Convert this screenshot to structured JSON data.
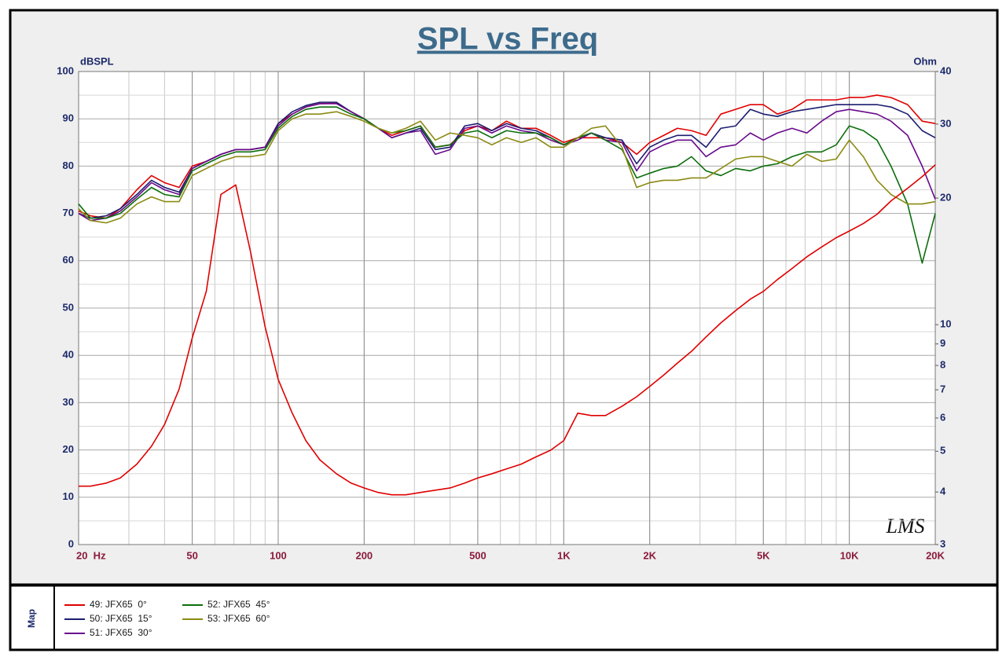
{
  "chart_data": {
    "type": "line",
    "title": "SPL vs Freq",
    "ylabel": "dBSPL",
    "y2label": "Ohm",
    "watermark": "LMS",
    "legend_title": "Map",
    "xscale": "log",
    "y2scale": "log",
    "grid": true,
    "xlim": [
      20,
      20000
    ],
    "xticks": [
      {
        "value": 20,
        "label": "20  Hz"
      },
      50,
      100,
      200,
      500,
      {
        "value": 1000,
        "label": "1K"
      },
      {
        "value": 2000,
        "label": "2K"
      },
      {
        "value": 5000,
        "label": "5K"
      },
      {
        "value": 10000,
        "label": "10K"
      },
      {
        "value": 20000,
        "label": "20K"
      }
    ],
    "ylim": [
      0,
      100
    ],
    "yticks": [
      0,
      10,
      20,
      30,
      40,
      50,
      60,
      70,
      80,
      90,
      100
    ],
    "y2lim": [
      3,
      40
    ],
    "y2ticks": [
      3,
      4,
      5,
      6,
      7,
      8,
      9,
      10,
      20,
      30,
      40
    ],
    "x": [
      20,
      22,
      25,
      28,
      32,
      36,
      40,
      45,
      50,
      56,
      63,
      71,
      80,
      90,
      100,
      112,
      125,
      140,
      160,
      180,
      200,
      224,
      250,
      280,
      315,
      355,
      400,
      450,
      500,
      560,
      630,
      710,
      800,
      900,
      1000,
      1120,
      1250,
      1400,
      1600,
      1800,
      2000,
      2240,
      2500,
      2800,
      3150,
      3550,
      4000,
      4500,
      5000,
      5600,
      6300,
      7100,
      8000,
      9000,
      10000,
      11200,
      12500,
      14000,
      16000,
      18000,
      20000
    ],
    "series": [
      {
        "name": "49: JFX65  0°",
        "color": "#e00000",
        "values": [
          70.5,
          69.5,
          69,
          71,
          75,
          78,
          76.5,
          75.5,
          80,
          81,
          82.5,
          83.5,
          83.5,
          84,
          89,
          91,
          92.5,
          93.2,
          93.3,
          91.5,
          90,
          88,
          86.5,
          87.5,
          88.5,
          84,
          84.5,
          87.5,
          88.5,
          87.5,
          89.5,
          88,
          88,
          86.5,
          85,
          86,
          86,
          86,
          85,
          82.5,
          85,
          86.5,
          88,
          87.5,
          86.5,
          91,
          92,
          93,
          93,
          91,
          92,
          94,
          94,
          94,
          94.5,
          94.5,
          95,
          94.5,
          93,
          89.5,
          89
        ]
      },
      {
        "name": "50: JFX65  15°",
        "color": "#1c1c70",
        "values": [
          70,
          69,
          69.5,
          71,
          74,
          77,
          75.5,
          74.5,
          79.5,
          81,
          82.5,
          83.5,
          83.5,
          84,
          89,
          91.5,
          92.8,
          93.5,
          93.5,
          91.5,
          90,
          88,
          86,
          87,
          88,
          83.5,
          84,
          88.5,
          89,
          87.5,
          89,
          88,
          87.5,
          86,
          84.5,
          86,
          87,
          86,
          85.5,
          80.5,
          84,
          85.5,
          86.5,
          86.5,
          84,
          88,
          88.5,
          92,
          91,
          90.5,
          91.5,
          92,
          92.5,
          93,
          93,
          93,
          93,
          92.5,
          91,
          87.5,
          86
        ]
      },
      {
        "name": "51: JFX65  30°",
        "color": "#6a0a8c",
        "values": [
          70,
          68.5,
          69,
          70.5,
          73.5,
          76.5,
          75,
          74,
          79.5,
          81,
          82.5,
          83.5,
          83.5,
          84,
          88.5,
          91,
          92.5,
          93.2,
          93.2,
          91.5,
          90,
          88,
          86,
          87,
          87.5,
          82.5,
          83.5,
          88,
          88.5,
          87,
          88.5,
          87.5,
          87,
          85.5,
          84.5,
          85.5,
          87,
          85.5,
          85,
          79,
          83,
          84.5,
          85.5,
          85.5,
          82,
          84,
          84.5,
          87,
          85.5,
          87,
          88,
          87,
          89.5,
          91.5,
          92,
          91.5,
          91,
          89.5,
          86.5,
          80,
          73
        ]
      },
      {
        "name": "52: JFX65  45°",
        "color": "#0b6e0b",
        "values": [
          72,
          69,
          69,
          70,
          73,
          75.5,
          74,
          73.5,
          79,
          80.5,
          82,
          83,
          83,
          83.5,
          88,
          90.5,
          92,
          92.5,
          92.5,
          91,
          90,
          88,
          87,
          87.5,
          88.5,
          84,
          84.5,
          87,
          87.5,
          86,
          87.5,
          87,
          87,
          86,
          84.5,
          86,
          87,
          85.5,
          83.5,
          77.5,
          78.5,
          79.5,
          80,
          82,
          79,
          78,
          79.5,
          79,
          80,
          80.5,
          82,
          83,
          83,
          84.5,
          88.5,
          87.5,
          85.5,
          80,
          72,
          59.5,
          70
        ]
      },
      {
        "name": "53: JFX65  60°",
        "color": "#8a8a12",
        "values": [
          71,
          68.5,
          68,
          69,
          72,
          73.5,
          72.5,
          72.5,
          78,
          79.5,
          81,
          82,
          82,
          82.5,
          87.5,
          90,
          91,
          91,
          91.5,
          90.5,
          89.5,
          88,
          87,
          88,
          89.5,
          85.5,
          87,
          86.5,
          86,
          84.5,
          86,
          85,
          86,
          84,
          84,
          86,
          88,
          88.5,
          84,
          75.5,
          76.5,
          77,
          77,
          77.5,
          77.5,
          79.5,
          81.5,
          82,
          82,
          81,
          80,
          82.5,
          81,
          81.5,
          85.5,
          82,
          77,
          74,
          72,
          72,
          72.5
        ]
      },
      {
        "color": "#e00000",
        "axis": "y2",
        "values": [
          4.13,
          4.13,
          4.2,
          4.32,
          4.66,
          5.14,
          5.79,
          7.03,
          9.3,
          12.0,
          20.4,
          21.5,
          14.9,
          9.88,
          7.41,
          6.16,
          5.3,
          4.77,
          4.42,
          4.2,
          4.09,
          3.99,
          3.94,
          3.94,
          3.99,
          4.04,
          4.09,
          4.2,
          4.32,
          4.42,
          4.54,
          4.66,
          4.85,
          5.03,
          5.3,
          6.16,
          6.08,
          6.08,
          6.4,
          6.74,
          7.13,
          7.59,
          8.1,
          8.64,
          9.35,
          10.1,
          10.8,
          11.5,
          12.0,
          12.8,
          13.6,
          14.5,
          15.3,
          16.1,
          16.7,
          17.4,
          18.3,
          19.7,
          21.1,
          22.5,
          24.0
        ]
      }
    ]
  }
}
